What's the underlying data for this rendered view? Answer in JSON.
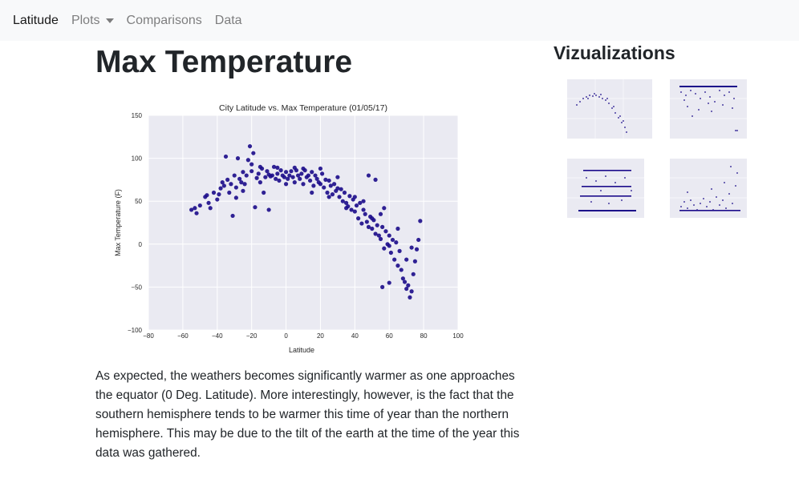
{
  "nav": {
    "brand": "Latitude",
    "items": [
      "Plots",
      "Comparisons",
      "Data"
    ]
  },
  "main": {
    "title": "Max Temperature",
    "description": "As expected, the weathers becomes significantly warmer as one approaches the equator (0 Deg. Latitude). More interestingly, however, is the fact that the southern hemisphere tends to be warmer this time of year than the northern hemisphere. This may be due to the tilt of the earth at the time of the year this data was gathered."
  },
  "sidebar": {
    "title": "Vizualizations",
    "thumbnails": [
      "max-temperature",
      "humidity",
      "cloudiness",
      "wind-speed"
    ]
  },
  "colors": {
    "point": "#1b0b8a",
    "plot_bg": "#eaeaf2",
    "grid": "#ffffff",
    "navbar": "#f8f9fa"
  },
  "chart_data": {
    "type": "scatter",
    "title": "City Latitude vs. Max Temperature (01/05/17)",
    "xlabel": "Latitude",
    "ylabel": "Max Temperature (F)",
    "xlim": [
      -80,
      100
    ],
    "ylim": [
      -100,
      150
    ],
    "xticks": [
      -80,
      -60,
      -40,
      -20,
      0,
      20,
      40,
      60,
      80,
      100
    ],
    "yticks": [
      -100,
      -50,
      0,
      50,
      100,
      150
    ],
    "grid": true,
    "points": [
      [
        -55,
        40
      ],
      [
        -53,
        42
      ],
      [
        -50,
        45
      ],
      [
        -47,
        55
      ],
      [
        -46,
        57
      ],
      [
        -45,
        48
      ],
      [
        -44,
        42
      ],
      [
        -42,
        60
      ],
      [
        -40,
        52
      ],
      [
        -38,
        65
      ],
      [
        -37,
        72
      ],
      [
        -36,
        68
      ],
      [
        -35,
        102
      ],
      [
        -34,
        75
      ],
      [
        -33,
        60
      ],
      [
        -32,
        70
      ],
      [
        -31,
        33
      ],
      [
        -30,
        80
      ],
      [
        -29,
        66
      ],
      [
        -28,
        100
      ],
      [
        -27,
        76
      ],
      [
        -26,
        72
      ],
      [
        -25,
        84
      ],
      [
        -24,
        70
      ],
      [
        -23,
        80
      ],
      [
        -22,
        98
      ],
      [
        -21,
        114
      ],
      [
        -20,
        85
      ],
      [
        -19,
        106
      ],
      [
        -18,
        43
      ],
      [
        -17,
        77
      ],
      [
        -16,
        82
      ],
      [
        -15,
        72
      ],
      [
        -14,
        88
      ],
      [
        -13,
        60
      ],
      [
        -12,
        78
      ],
      [
        -11,
        85
      ],
      [
        -10,
        40
      ],
      [
        -9,
        79
      ],
      [
        -8,
        80
      ],
      [
        -7,
        90
      ],
      [
        -6,
        76
      ],
      [
        -5,
        82
      ],
      [
        -4,
        74
      ],
      [
        -3,
        86
      ],
      [
        -2,
        80
      ],
      [
        -1,
        78
      ],
      [
        0,
        84
      ],
      [
        1,
        76
      ],
      [
        2,
        80
      ],
      [
        3,
        85
      ],
      [
        4,
        78
      ],
      [
        5,
        72
      ],
      [
        6,
        86
      ],
      [
        7,
        80
      ],
      [
        8,
        76
      ],
      [
        9,
        82
      ],
      [
        10,
        70
      ],
      [
        11,
        86
      ],
      [
        12,
        78
      ],
      [
        13,
        80
      ],
      [
        14,
        74
      ],
      [
        15,
        84
      ],
      [
        16,
        68
      ],
      [
        17,
        80
      ],
      [
        18,
        76
      ],
      [
        19,
        72
      ],
      [
        20,
        70
      ],
      [
        21,
        82
      ],
      [
        22,
        66
      ],
      [
        23,
        75
      ],
      [
        24,
        60
      ],
      [
        25,
        74
      ],
      [
        26,
        68
      ],
      [
        27,
        58
      ],
      [
        28,
        70
      ],
      [
        29,
        62
      ],
      [
        30,
        65
      ],
      [
        31,
        55
      ],
      [
        32,
        64
      ],
      [
        33,
        50
      ],
      [
        34,
        60
      ],
      [
        35,
        48
      ],
      [
        36,
        44
      ],
      [
        37,
        56
      ],
      [
        38,
        40
      ],
      [
        39,
        52
      ],
      [
        40,
        38
      ],
      [
        41,
        45
      ],
      [
        42,
        30
      ],
      [
        43,
        48
      ],
      [
        44,
        24
      ],
      [
        45,
        40
      ],
      [
        46,
        35
      ],
      [
        47,
        26
      ],
      [
        48,
        20
      ],
      [
        49,
        32
      ],
      [
        50,
        18
      ],
      [
        51,
        28
      ],
      [
        52,
        12
      ],
      [
        53,
        22
      ],
      [
        54,
        10
      ],
      [
        55,
        6
      ],
      [
        56,
        20
      ],
      [
        57,
        -5
      ],
      [
        58,
        15
      ],
      [
        59,
        0
      ],
      [
        60,
        10
      ],
      [
        61,
        -10
      ],
      [
        62,
        5
      ],
      [
        63,
        -18
      ],
      [
        64,
        2
      ],
      [
        65,
        -25
      ],
      [
        66,
        -8
      ],
      [
        67,
        -30
      ],
      [
        68,
        -40
      ],
      [
        69,
        -44
      ],
      [
        70,
        -52
      ],
      [
        71,
        -48
      ],
      [
        72,
        -62
      ],
      [
        73,
        -55
      ],
      [
        74,
        -35
      ],
      [
        75,
        -20
      ],
      [
        76,
        -6
      ],
      [
        77,
        5
      ],
      [
        78,
        27
      ],
      [
        -52,
        36
      ],
      [
        -39,
        58
      ],
      [
        -29,
        54
      ],
      [
        -25,
        62
      ],
      [
        -20,
        93
      ],
      [
        -15,
        90
      ],
      [
        -10,
        81
      ],
      [
        -5,
        89
      ],
      [
        0,
        70
      ],
      [
        5,
        89
      ],
      [
        10,
        88
      ],
      [
        15,
        60
      ],
      [
        20,
        88
      ],
      [
        25,
        55
      ],
      [
        30,
        78
      ],
      [
        35,
        42
      ],
      [
        40,
        55
      ],
      [
        45,
        50
      ],
      [
        50,
        30
      ],
      [
        55,
        35
      ],
      [
        60,
        -2
      ],
      [
        65,
        18
      ],
      [
        70,
        -18
      ],
      [
        73,
        -4
      ],
      [
        52,
        75
      ],
      [
        56,
        -50
      ],
      [
        60,
        -45
      ],
      [
        48,
        80
      ],
      [
        57,
        42
      ]
    ]
  }
}
